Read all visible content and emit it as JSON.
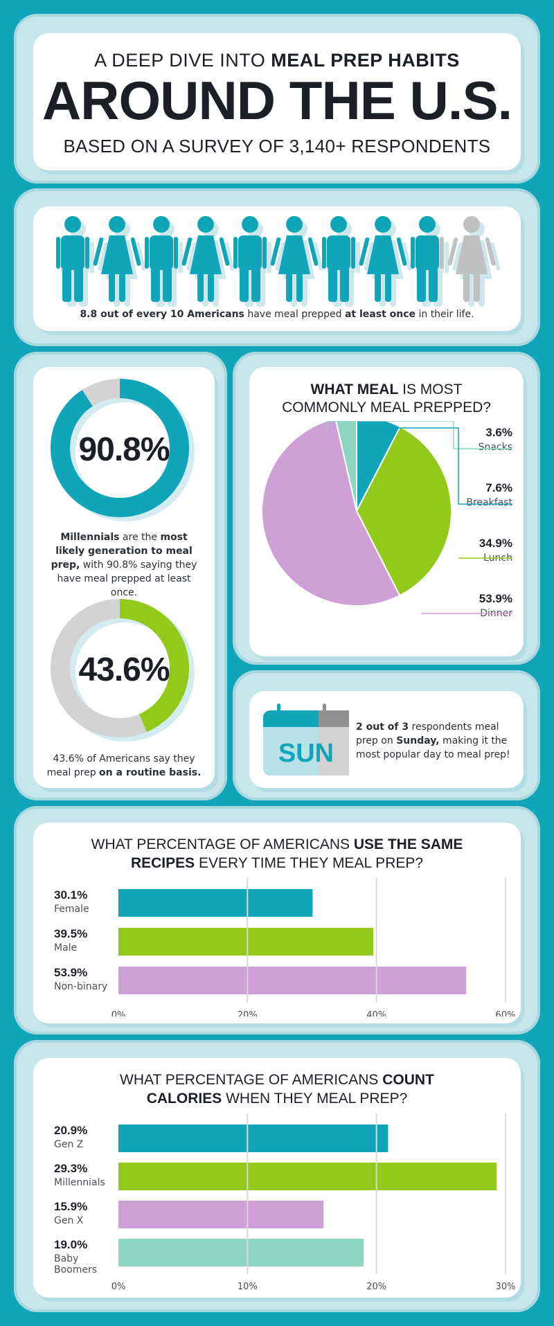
{
  "header": {
    "line1_pre": "A DEEP DIVE INTO ",
    "line1_bold": "MEAL PREP HABITS",
    "line2": "AROUND THE U.S.",
    "line3": "BASED ON A SURVEY OF 3,140+ RESPONDENTS"
  },
  "people": {
    "count_total": 10,
    "count_highlighted": 8.8,
    "caption_b1": "8.8 out of every 10 Americans",
    "caption_t1": " have meal prepped ",
    "caption_b2": "at least once",
    "caption_t2": " in their life.",
    "colors": {
      "teal": "#10a5b8",
      "grey": "#bfc0c0",
      "shadow": "#cfe7ec"
    }
  },
  "millennials": {
    "value_label": "90.8%",
    "value": 90.8,
    "caption_b1": "Millennials",
    "caption_t1": " are the ",
    "caption_b2": "most likely generation to meal prep,",
    "caption_t2": " with 90.8% saying they have meal prepped at least once.",
    "color": "#10a5b8"
  },
  "routine": {
    "value_label": "43.6%",
    "value": 43.6,
    "caption_t1": "43.6% of Americans say they meal prep ",
    "caption_b1": "on a routine basis.",
    "color": "#92c91a"
  },
  "pie": {
    "title_bold": "WHAT MEAL",
    "title_rest": " IS MOST",
    "title_line2": "COMMONLY MEAL PREPPED?",
    "slices": [
      {
        "label": "Snacks",
        "value_label": "3.6%",
        "value": 3.6,
        "color": "#8dd6c2"
      },
      {
        "label": "Breakfast",
        "value_label": "7.6%",
        "value": 7.6,
        "color": "#10a5b8"
      },
      {
        "label": "Lunch",
        "value_label": "34.9%",
        "value": 34.9,
        "color": "#92c91a"
      },
      {
        "label": "Dinner",
        "value_label": "53.9%",
        "value": 53.9,
        "color": "#cf9fd8"
      }
    ]
  },
  "sunday": {
    "calendar_text": "SUN",
    "caption_b1": "2 out of 3",
    "caption_t1": " respondents meal prep on ",
    "caption_b2": "Sunday,",
    "caption_t2": " making it the most popular day to meal prep!"
  },
  "chart_data": [
    {
      "type": "bar",
      "title": "WHAT PERCENTAGE OF AMERICANS USE THE SAME RECIPES EVERY TIME THEY MEAL PREP?",
      "title_parts": {
        "l1_a": "WHAT PERCENTAGE OF AMERICANS ",
        "l1_b": "USE THE SAME",
        "l2_a": "RECIPES",
        "l2_b": " EVERY TIME THEY MEAL PREP?"
      },
      "categories": [
        "Female",
        "Male",
        "Non-binary"
      ],
      "values": [
        30.1,
        39.5,
        53.9
      ],
      "value_labels": [
        "30.1%",
        "39.5%",
        "53.9%"
      ],
      "colors": [
        "#10a5b8",
        "#92c91a",
        "#cf9fd8"
      ],
      "ticks": [
        "0%",
        "20%",
        "40%",
        "60%"
      ],
      "xlim": [
        0,
        60
      ]
    },
    {
      "type": "bar",
      "title": "WHAT PERCENTAGE OF AMERICANS COUNT CALORIES WHEN THEY MEAL PREP?",
      "title_parts": {
        "l1_a": "WHAT PERCENTAGE OF AMERICANS ",
        "l1_b": "COUNT",
        "l2_a": "CALORIES",
        "l2_b": " WHEN THEY MEAL PREP?"
      },
      "categories": [
        "Gen Z",
        "Millennials",
        "Gen X",
        "Baby Boomers"
      ],
      "values": [
        20.9,
        29.3,
        15.9,
        19.0
      ],
      "value_labels": [
        "20.9%",
        "29.3%",
        "15.9%",
        "19.0%"
      ],
      "colors": [
        "#10a5b8",
        "#92c91a",
        "#cf9fd8",
        "#8dd6c2"
      ],
      "ticks": [
        "0%",
        "10%",
        "20%",
        "30%"
      ],
      "xlim": [
        0,
        30
      ]
    }
  ]
}
